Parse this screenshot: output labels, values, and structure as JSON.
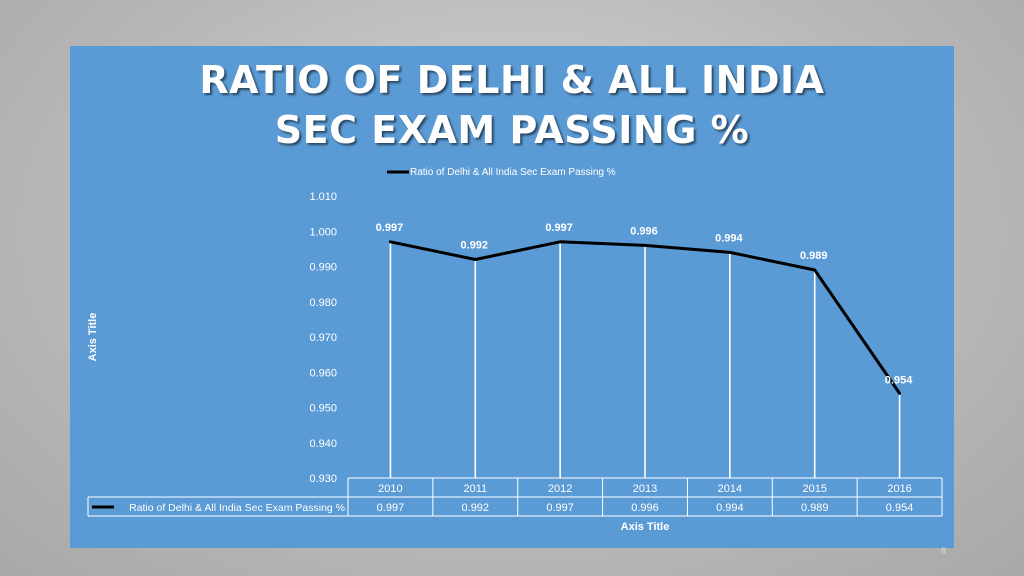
{
  "title_lines": [
    "RATIO OF DELHI & ALL INDIA",
    "SEC EXAM PASSING %"
  ],
  "slide_number": "8",
  "chart_data": {
    "type": "line",
    "title": "RATIO OF DELHI & ALL INDIA SEC EXAM PASSING %",
    "categories": [
      "2010",
      "2011",
      "2012",
      "2013",
      "2014",
      "2015",
      "2016"
    ],
    "series": [
      {
        "name": "Ratio of Delhi & All India Sec Exam Passing %",
        "values": [
          0.997,
          0.992,
          0.997,
          0.996,
          0.994,
          0.989,
          0.954
        ]
      }
    ],
    "data_labels": [
      "0.997",
      "0.992",
      "0.997",
      "0.996",
      "0.994",
      "0.989",
      "0.954"
    ],
    "yticks": [
      "0.930",
      "0.940",
      "0.950",
      "0.960",
      "0.970",
      "0.980",
      "0.990",
      "1.000",
      "1.010"
    ],
    "ylim": [
      0.93,
      1.01
    ],
    "xlabel": "Axis Title",
    "ylabel": "Axis Title",
    "legend_position": "top",
    "data_table": true,
    "grid": false,
    "colors": {
      "background": "#5b9bd5",
      "line": "#000000",
      "text": "#ffffff",
      "drop_lines": "#ffffff"
    }
  }
}
